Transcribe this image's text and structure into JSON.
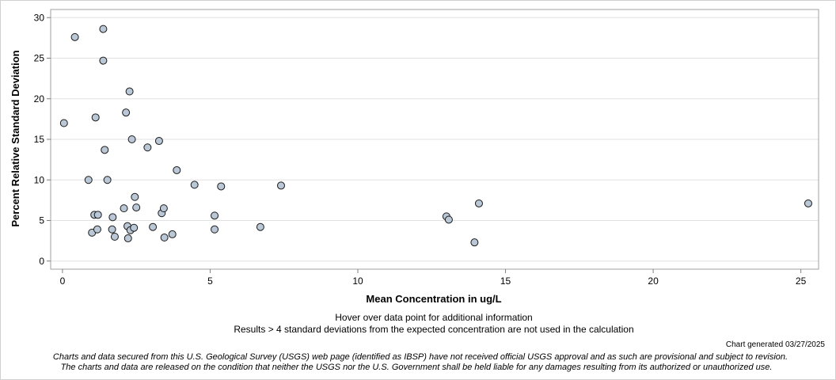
{
  "chart_data": {
    "type": "scatter",
    "xlabel": "Mean Concentration in ug/L",
    "ylabel": "Percent Relative Standard Deviation",
    "xlim": [
      -0.4,
      25.6
    ],
    "ylim": [
      -1,
      31
    ],
    "x_ticks": [
      0,
      5,
      10,
      15,
      20,
      25
    ],
    "y_ticks": [
      0,
      5,
      10,
      15,
      20,
      25,
      30
    ],
    "grid": "horizontal",
    "marker_color": "#b9c7d6",
    "series": [
      {
        "points": [
          {
            "x": 0.05,
            "y": 17.0
          },
          {
            "x": 0.42,
            "y": 27.6
          },
          {
            "x": 0.88,
            "y": 10.0
          },
          {
            "x": 1.0,
            "y": 3.5
          },
          {
            "x": 1.08,
            "y": 5.7
          },
          {
            "x": 1.12,
            "y": 17.7
          },
          {
            "x": 1.18,
            "y": 3.9
          },
          {
            "x": 1.2,
            "y": 5.7
          },
          {
            "x": 1.38,
            "y": 28.6
          },
          {
            "x": 1.38,
            "y": 24.7
          },
          {
            "x": 1.43,
            "y": 13.7
          },
          {
            "x": 1.52,
            "y": 10.0
          },
          {
            "x": 1.68,
            "y": 3.9
          },
          {
            "x": 1.7,
            "y": 5.4
          },
          {
            "x": 1.77,
            "y": 3.0
          },
          {
            "x": 2.08,
            "y": 6.5
          },
          {
            "x": 2.15,
            "y": 18.3
          },
          {
            "x": 2.2,
            "y": 4.3
          },
          {
            "x": 2.22,
            "y": 2.8
          },
          {
            "x": 2.27,
            "y": 20.9
          },
          {
            "x": 2.3,
            "y": 3.8
          },
          {
            "x": 2.35,
            "y": 15.0
          },
          {
            "x": 2.42,
            "y": 4.1
          },
          {
            "x": 2.45,
            "y": 7.9
          },
          {
            "x": 2.5,
            "y": 6.6
          },
          {
            "x": 2.88,
            "y": 14.0
          },
          {
            "x": 3.06,
            "y": 4.2
          },
          {
            "x": 3.27,
            "y": 14.8
          },
          {
            "x": 3.36,
            "y": 5.9
          },
          {
            "x": 3.43,
            "y": 6.5
          },
          {
            "x": 3.45,
            "y": 2.9
          },
          {
            "x": 3.72,
            "y": 3.3
          },
          {
            "x": 3.87,
            "y": 11.2
          },
          {
            "x": 4.47,
            "y": 9.4
          },
          {
            "x": 5.15,
            "y": 5.6
          },
          {
            "x": 5.15,
            "y": 3.9
          },
          {
            "x": 5.37,
            "y": 9.2
          },
          {
            "x": 6.7,
            "y": 4.2
          },
          {
            "x": 7.4,
            "y": 9.3
          },
          {
            "x": 13.0,
            "y": 5.5
          },
          {
            "x": 13.08,
            "y": 5.1
          },
          {
            "x": 13.95,
            "y": 2.3
          },
          {
            "x": 14.1,
            "y": 7.1
          },
          {
            "x": 25.25,
            "y": 7.1
          }
        ]
      }
    ]
  },
  "notes": {
    "hover": "Hover over data point for additional information",
    "results": "Results > 4 standard deviations from the expected concentration are not used in the calculation",
    "generated": "Chart generated 03/27/2025",
    "disclaimer1": "Charts and data secured from this U.S. Geological Survey (USGS) web page (identified as IBSP) have not received official USGS approval and as such are provisional and subject to revision.",
    "disclaimer2": "The charts and data are released on the condition that neither the USGS nor the U.S. Government shall be held liable for any damages resulting from its authorized or unauthorized use."
  }
}
